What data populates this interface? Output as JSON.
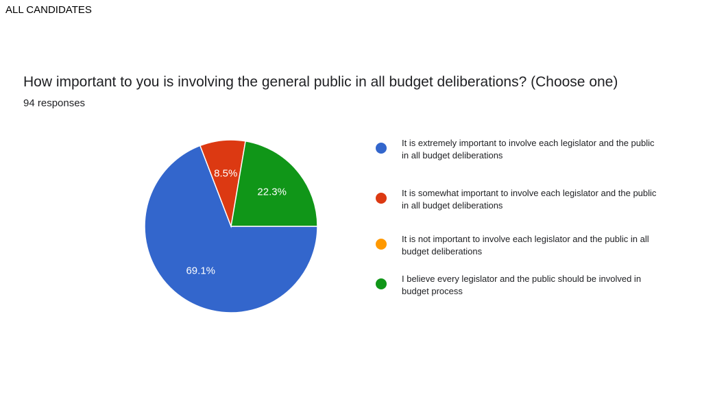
{
  "page_heading": "ALL CANDIDATES",
  "chart_data": {
    "type": "pie",
    "title": "How important to you is involving the general public in all budget deliberations? (Choose one)",
    "subtitle": "94 responses",
    "legend_position": "right",
    "slices": [
      {
        "label": "It is extremely important to involve each legislator and the public in all budget deliberations",
        "value": 69.1,
        "display": "69.1%",
        "color": "#3366cc"
      },
      {
        "label": "It is somewhat important to involve each legislator and the public in all budget deliberations",
        "value": 8.5,
        "display": "8.5%",
        "color": "#dc3912"
      },
      {
        "label": "It is not important to involve each legislator and the public in all budget deliberations",
        "value": 0,
        "display": "",
        "color": "#ff9900"
      },
      {
        "label": "I believe every legislator and the public should be involved in budget process",
        "value": 22.3,
        "display": "22.3%",
        "color": "#109618"
      }
    ]
  }
}
